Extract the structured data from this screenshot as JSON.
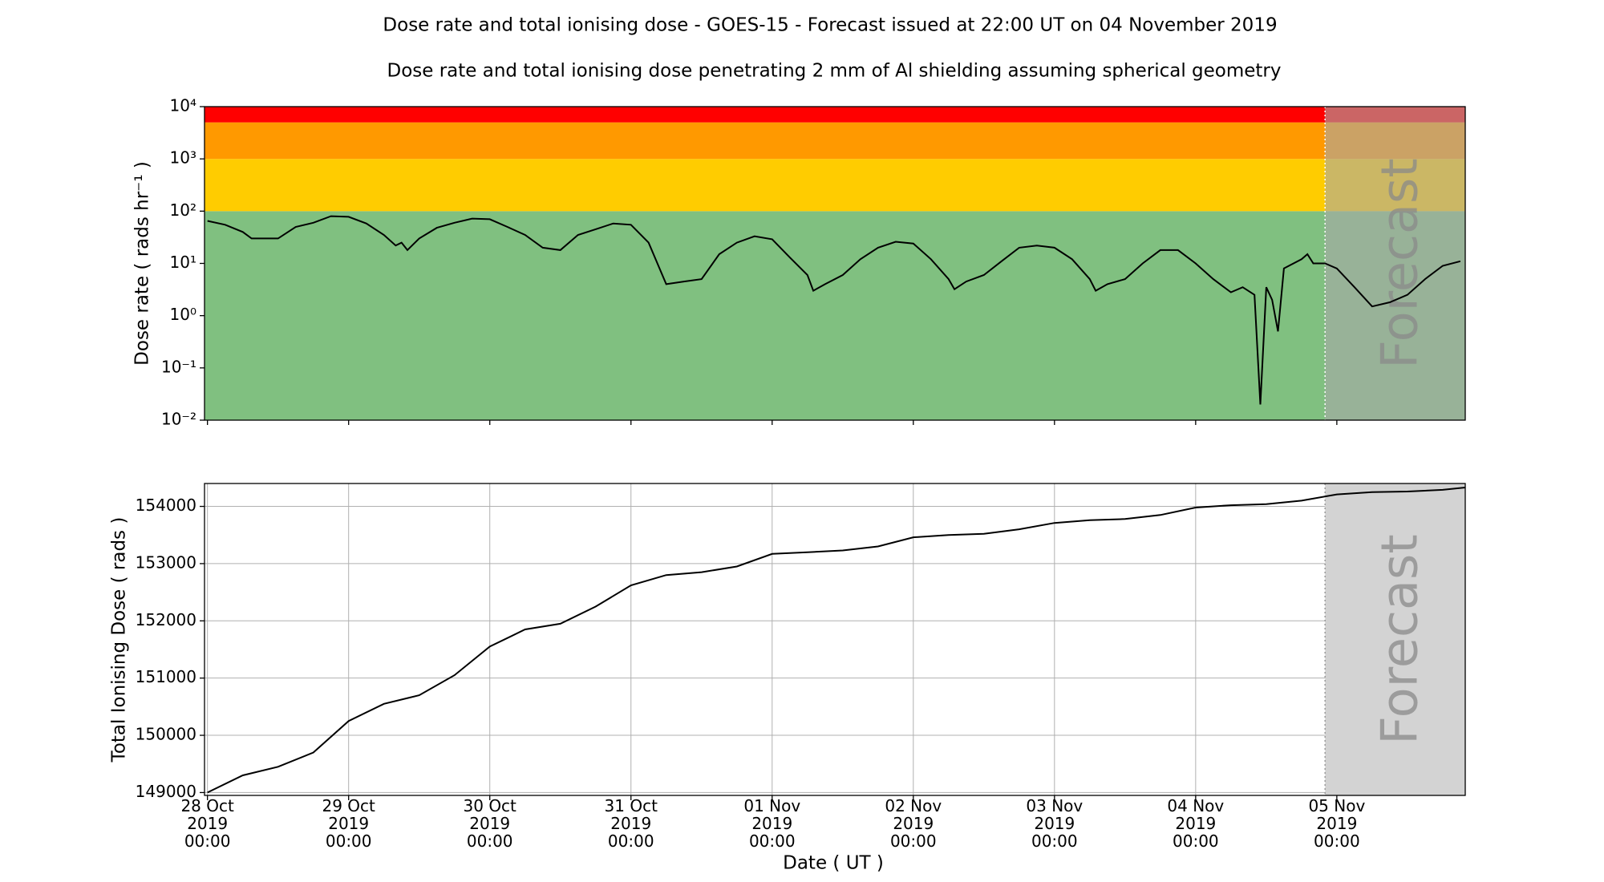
{
  "title": "Dose rate and total ionising dose - GOES-15 - Forecast issued at 22:00 UT on 04 November 2019",
  "subtitle": "Dose rate and total ionising dose penetrating 2 mm of Al shielding assuming spherical geometry",
  "chart_data": [
    {
      "type": "line",
      "y_label": "Dose rate ( rads hr⁻¹ )",
      "log_y": true,
      "grid": false,
      "xlim": [
        "2019-10-27T23:30",
        "2019-11-05T21:50"
      ],
      "xticks": [
        "2019-10-28T00:00",
        "2019-10-29T00:00",
        "2019-10-30T00:00",
        "2019-10-31T00:00",
        "2019-11-01T00:00",
        "2019-11-02T00:00",
        "2019-11-03T00:00",
        "2019-11-04T00:00",
        "2019-11-05T00:00"
      ],
      "ylim": [
        0.01,
        10000
      ],
      "yticks": [
        {
          "value": 0.01,
          "label": "10⁻²"
        },
        {
          "value": 0.1,
          "label": "10⁻¹"
        },
        {
          "value": 1,
          "label": "10⁰"
        },
        {
          "value": 10,
          "label": "10¹"
        },
        {
          "value": 100,
          "label": "10²"
        },
        {
          "value": 1000,
          "label": "10³"
        },
        {
          "value": 10000,
          "label": "10⁴"
        }
      ],
      "bands": [
        {
          "from": 0.01,
          "to": 100,
          "color": "#80c080"
        },
        {
          "from": 100,
          "to": 1000,
          "color": "#ffcc00"
        },
        {
          "from": 1000,
          "to": 5000,
          "color": "#ff9900"
        },
        {
          "from": 5000,
          "to": 10000,
          "color": "#ff0000"
        }
      ],
      "forecast": {
        "start": "2019-11-04T22:00",
        "label": "Forecast"
      },
      "color": "#000000",
      "x": [
        "2019-10-28T00:00",
        "2019-10-28T03:00",
        "2019-10-28T06:00",
        "2019-10-28T07:30",
        "2019-10-28T09:00",
        "2019-10-28T12:00",
        "2019-10-28T15:00",
        "2019-10-28T18:00",
        "2019-10-28T21:00",
        "2019-10-29T00:00",
        "2019-10-29T03:00",
        "2019-10-29T06:00",
        "2019-10-29T08:00",
        "2019-10-29T09:00",
        "2019-10-29T10:00",
        "2019-10-29T12:00",
        "2019-10-29T15:00",
        "2019-10-29T18:00",
        "2019-10-29T21:00",
        "2019-10-30T00:00",
        "2019-10-30T03:00",
        "2019-10-30T06:00",
        "2019-10-30T09:00",
        "2019-10-30T12:00",
        "2019-10-30T15:00",
        "2019-10-30T18:00",
        "2019-10-30T21:00",
        "2019-10-31T00:00",
        "2019-10-31T03:00",
        "2019-10-31T06:00",
        "2019-10-31T09:00",
        "2019-10-31T12:00",
        "2019-10-31T15:00",
        "2019-10-31T18:00",
        "2019-10-31T21:00",
        "2019-11-01T00:00",
        "2019-11-01T03:00",
        "2019-11-01T06:00",
        "2019-11-01T07:00",
        "2019-11-01T09:00",
        "2019-11-01T12:00",
        "2019-11-01T15:00",
        "2019-11-01T18:00",
        "2019-11-01T21:00",
        "2019-11-02T00:00",
        "2019-11-02T03:00",
        "2019-11-02T06:00",
        "2019-11-02T07:00",
        "2019-11-02T09:00",
        "2019-11-02T12:00",
        "2019-11-02T15:00",
        "2019-11-02T18:00",
        "2019-11-02T21:00",
        "2019-11-03T00:00",
        "2019-11-03T03:00",
        "2019-11-03T06:00",
        "2019-11-03T07:00",
        "2019-11-03T09:00",
        "2019-11-03T12:00",
        "2019-11-03T15:00",
        "2019-11-03T18:00",
        "2019-11-03T21:00",
        "2019-11-04T00:00",
        "2019-11-04T03:00",
        "2019-11-04T06:00",
        "2019-11-04T08:00",
        "2019-11-04T10:00",
        "2019-11-04T11:00",
        "2019-11-04T12:00",
        "2019-11-04T13:00",
        "2019-11-04T14:00",
        "2019-11-04T15:00",
        "2019-11-04T18:00",
        "2019-11-04T19:00",
        "2019-11-04T20:00",
        "2019-11-04T22:00",
        "2019-11-05T00:00",
        "2019-11-05T03:00",
        "2019-11-05T06:00",
        "2019-11-05T09:00",
        "2019-11-05T12:00",
        "2019-11-05T15:00",
        "2019-11-05T18:00",
        "2019-11-05T21:00"
      ],
      "values": [
        65,
        55,
        40,
        30,
        30,
        30,
        50,
        60,
        80,
        78,
        58,
        35,
        22,
        25,
        18,
        30,
        48,
        60,
        72,
        70,
        50,
        35,
        20,
        18,
        35,
        45,
        58,
        55,
        25,
        4,
        4.5,
        5,
        15,
        25,
        33,
        29,
        13,
        6,
        3,
        4,
        6,
        12,
        20,
        26,
        24,
        12,
        5,
        3.2,
        4.5,
        6,
        11,
        20,
        22,
        20,
        12,
        5,
        3,
        4,
        5,
        10,
        18,
        18,
        10,
        5,
        2.8,
        3.5,
        2.5,
        0.02,
        3.5,
        2,
        0.5,
        8,
        12,
        15,
        10,
        10,
        8,
        3.5,
        1.5,
        1.8,
        2.5,
        5,
        9,
        11
      ]
    },
    {
      "type": "line",
      "x_label": "Date ( UT )",
      "y_label": "Total Ionising Dose ( rads )",
      "log_y": false,
      "grid": true,
      "xlim": [
        "2019-10-27T23:30",
        "2019-11-05T21:50"
      ],
      "xticks": [
        {
          "value": "2019-10-28T00:00",
          "label": "28 Oct\n2019\n00:00"
        },
        {
          "value": "2019-10-29T00:00",
          "label": "29 Oct\n2019\n00:00"
        },
        {
          "value": "2019-10-30T00:00",
          "label": "30 Oct\n2019\n00:00"
        },
        {
          "value": "2019-10-31T00:00",
          "label": "31 Oct\n2019\n00:00"
        },
        {
          "value": "2019-11-01T00:00",
          "label": "01 Nov\n2019\n00:00"
        },
        {
          "value": "2019-11-02T00:00",
          "label": "02 Nov\n2019\n00:00"
        },
        {
          "value": "2019-11-03T00:00",
          "label": "03 Nov\n2019\n00:00"
        },
        {
          "value": "2019-11-04T00:00",
          "label": "04 Nov\n2019\n00:00"
        },
        {
          "value": "2019-11-05T00:00",
          "label": "05 Nov\n2019\n00:00"
        }
      ],
      "ylim": [
        148950,
        154400
      ],
      "yticks": [
        149000,
        150000,
        151000,
        152000,
        153000,
        154000
      ],
      "forecast": {
        "start": "2019-11-04T22:00",
        "label": "Forecast"
      },
      "color": "#000000",
      "x": [
        "2019-10-28T00:00",
        "2019-10-28T06:00",
        "2019-10-28T12:00",
        "2019-10-28T18:00",
        "2019-10-29T00:00",
        "2019-10-29T06:00",
        "2019-10-29T12:00",
        "2019-10-29T18:00",
        "2019-10-30T00:00",
        "2019-10-30T06:00",
        "2019-10-30T12:00",
        "2019-10-30T18:00",
        "2019-10-31T00:00",
        "2019-10-31T06:00",
        "2019-10-31T12:00",
        "2019-10-31T18:00",
        "2019-11-01T00:00",
        "2019-11-01T06:00",
        "2019-11-01T12:00",
        "2019-11-01T18:00",
        "2019-11-02T00:00",
        "2019-11-02T06:00",
        "2019-11-02T12:00",
        "2019-11-02T18:00",
        "2019-11-03T00:00",
        "2019-11-03T06:00",
        "2019-11-03T12:00",
        "2019-11-03T18:00",
        "2019-11-04T00:00",
        "2019-11-04T06:00",
        "2019-11-04T12:00",
        "2019-11-04T18:00",
        "2019-11-05T00:00",
        "2019-11-05T06:00",
        "2019-11-05T12:00",
        "2019-11-05T18:00",
        "2019-11-05T21:50"
      ],
      "values": [
        149000,
        149300,
        149450,
        149700,
        150250,
        150550,
        150700,
        151050,
        151550,
        151850,
        151950,
        152250,
        152620,
        152800,
        152850,
        152950,
        153170,
        153200,
        153230,
        153300,
        153460,
        153500,
        153520,
        153600,
        153710,
        153760,
        153780,
        153850,
        153980,
        154020,
        154040,
        154100,
        154210,
        154250,
        154260,
        154290,
        154330
      ]
    }
  ]
}
